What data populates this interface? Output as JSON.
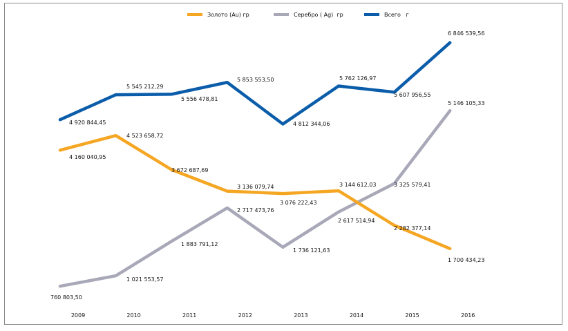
{
  "chart_data": {
    "type": "line",
    "categories": [
      "2009",
      "2010",
      "2011",
      "2012",
      "2013",
      "2014",
      "2015",
      "2016"
    ],
    "series": [
      {
        "name": "Золото (Au) гр",
        "color": "#F5A623",
        "values": [
          4160040.95,
          4523658.72,
          3672687.69,
          3136079.74,
          3076222.43,
          3144612.03,
          2282377.14,
          1700434.23
        ],
        "labels": [
          "4 160 040,95",
          "4 523 658,72",
          "3 672 687,69",
          "3 136 079,74",
          "3 076 222,43",
          "3 144 612,03",
          "2 282 377,14",
          "1 700 434,23"
        ]
      },
      {
        "name": "Серебро ( Ag)  гр",
        "color": "#A8A8B8",
        "values": [
          760803.5,
          1021553.57,
          1883791.12,
          2717473.76,
          1736121.63,
          2617514.94,
          3325579.41,
          5146105.33
        ],
        "labels": [
          "760 803,50",
          "1 021 553,57",
          "1 883 791,12",
          "2 717 473,76",
          "1 736 121,63",
          "2 617 514,94",
          "3 325 579,41",
          "5 146 105,33"
        ]
      },
      {
        "name": "Всего   г",
        "color": "#0B5DAA",
        "values": [
          4920844.45,
          5545212.29,
          5556478.81,
          5853553.5,
          4812344.06,
          5762126.97,
          5607956.55,
          6846539.56
        ],
        "labels": [
          "4 920 844,45",
          "5 545 212,29",
          "5 556 478,81",
          "5 853 553,50",
          "4 812 344,06",
          "5 762 126,97",
          "5 607 956,55",
          "6 846 539,56"
        ]
      }
    ],
    "legend_position": "top-center",
    "grid": false,
    "title": "",
    "xlabel": "",
    "ylabel": ""
  }
}
